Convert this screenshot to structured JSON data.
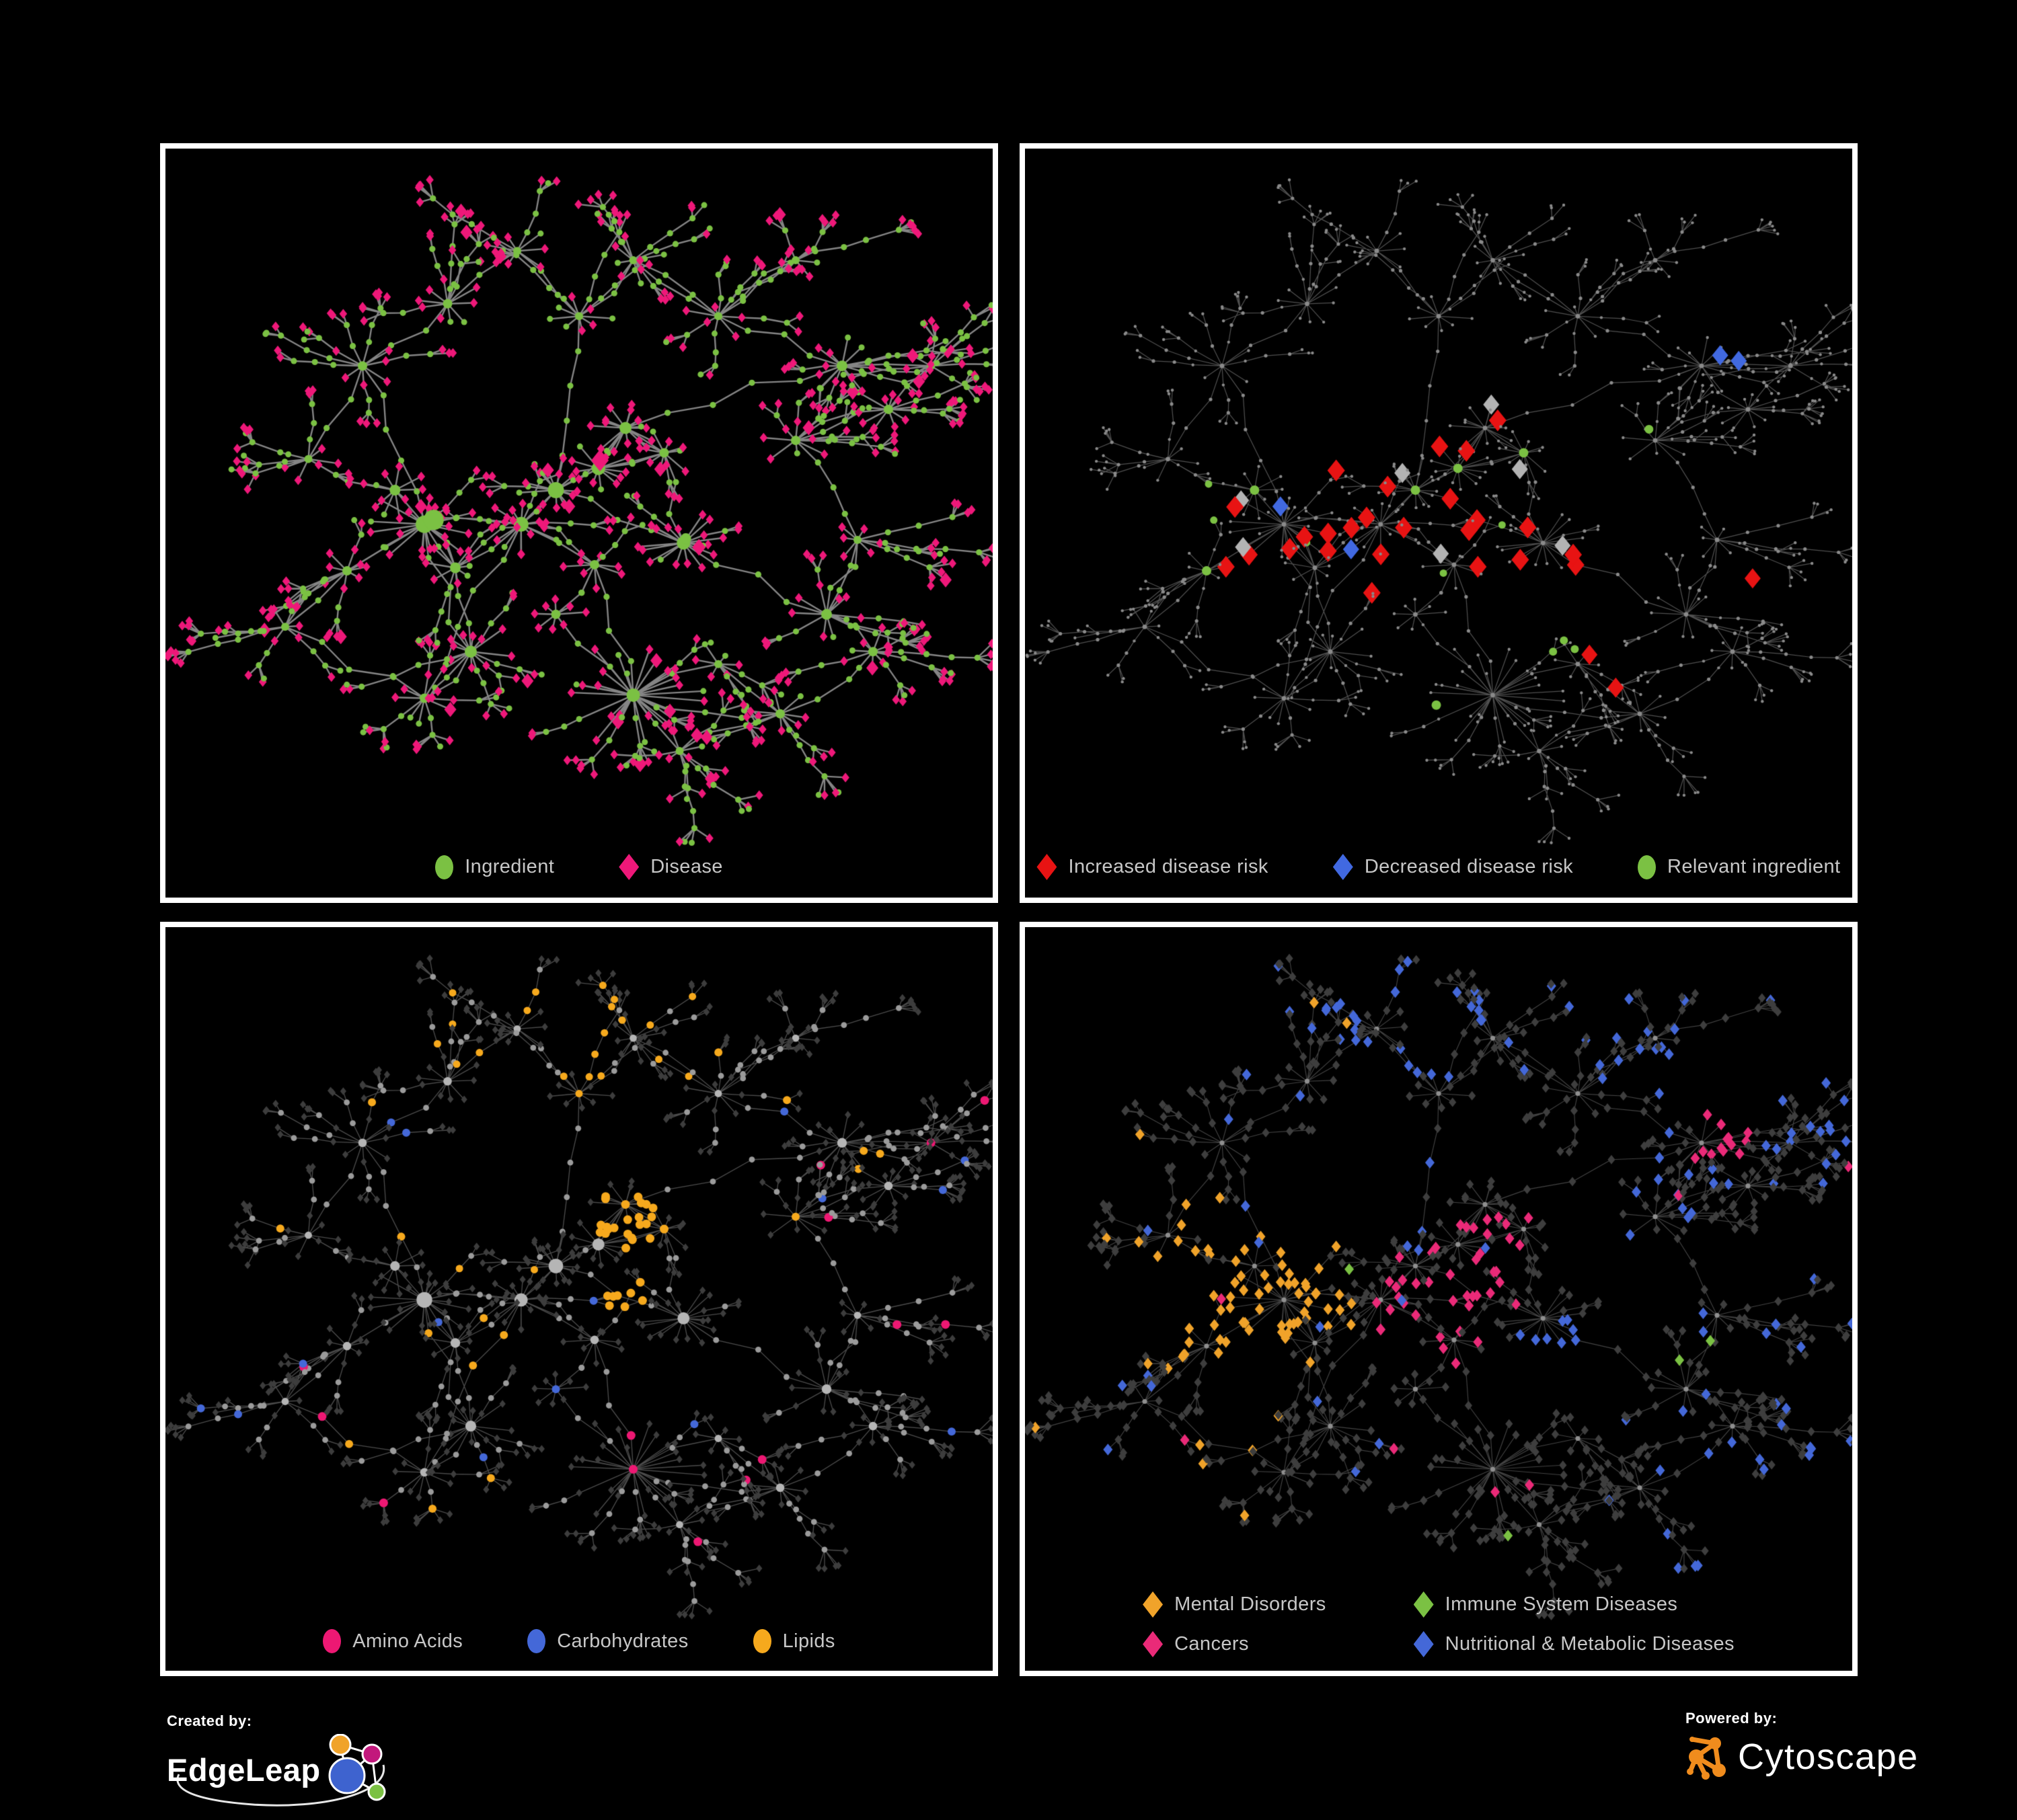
{
  "page": {
    "background": "#000000",
    "panel_border": "#ffffff",
    "legend_text_color": "#c7c7c7"
  },
  "panels": [
    {
      "name": "ingredient-disease-network",
      "position": "top-left",
      "legend": [
        {
          "label": "Ingredient",
          "shape": "circle",
          "color": "#7bc143"
        },
        {
          "label": "Disease",
          "shape": "diamond",
          "color": "#ee1879"
        }
      ],
      "edge_color": "#8f8f8f"
    },
    {
      "name": "disease-risk-network",
      "position": "top-right",
      "legend": [
        {
          "label": "Increased disease risk",
          "shape": "diamond",
          "color": "#e81313"
        },
        {
          "label": "Decreased disease risk",
          "shape": "diamond",
          "color": "#4169e1"
        },
        {
          "label": "Relevant ingredient",
          "shape": "circle",
          "color": "#7bc143"
        }
      ],
      "edge_color": "#7a7a7a",
      "unlabeled_highlight_color": "#b3b3b3"
    },
    {
      "name": "nutrient-class-network",
      "position": "bottom-left",
      "legend": [
        {
          "label": "Amino Acids",
          "shape": "circle",
          "color": "#ed1873"
        },
        {
          "label": "Carbohydrates",
          "shape": "circle",
          "color": "#4468d8"
        },
        {
          "label": "Lipids",
          "shape": "circle",
          "color": "#f6a91d"
        }
      ],
      "edge_color": "#969696"
    },
    {
      "name": "disease-class-network",
      "position": "bottom-right",
      "legend_columns": 2,
      "legend": [
        {
          "label": "Mental Disorders",
          "shape": "diamond",
          "color": "#f0a32a"
        },
        {
          "label": "Immune System Diseases",
          "shape": "diamond",
          "color": "#7bc143"
        },
        {
          "label": "Cancers",
          "shape": "diamond",
          "color": "#ea2a78"
        },
        {
          "label": "Nutritional & Metabolic Diseases",
          "shape": "diamond",
          "color": "#4468d8"
        }
      ],
      "edge_color": "#808080"
    }
  ],
  "footer": {
    "created_by_label": "Created by:",
    "created_by_name": "EdgeLeap",
    "powered_by_label": "Powered by:",
    "powered_by_name": "Cytoscape",
    "cytoscape_icon_color": "#f08c1d",
    "edgeleap_logo_colors": [
      "#f0a32a",
      "#c2187c",
      "#3e63cf",
      "#7bc143"
    ]
  },
  "chart_data": {
    "type": "network",
    "panel_count": 4,
    "shared_layout": true,
    "background": "#000000",
    "panels": [
      {
        "position": "top-left",
        "legend": [
          "Ingredient",
          "Disease"
        ],
        "node_encoding": "green circles = ingredients (hubs), pink diamonds = diseases (leaves)",
        "approx_nodes": 650
      },
      {
        "position": "top-right",
        "legend": [
          "Increased disease risk",
          "Decreased disease risk",
          "Relevant ingredient"
        ],
        "node_encoding": "tiny gray dots = background network; red diamonds = increased risk, blue diamonds = decreased risk, gray diamonds = unlabeled, green circles = relevant ingredients, concentrated in the central-left region",
        "approx_highlighted": {
          "red": 28,
          "blue": 9,
          "gray": 8,
          "green": 30
        }
      },
      {
        "position": "bottom-left",
        "legend": [
          "Amino Acids",
          "Carbohydrates",
          "Lipids"
        ],
        "node_encoding": "light gray circles = ingredients, dark gray diamonds = diseases; pink circles = amino acids (scattered periphery), blue circles = carbohydrates (sparse), orange circles = lipids (dense upper-center clump)",
        "approx_highlighted": {
          "amino_acids": 20,
          "carbohydrates": 12,
          "lipids": 55
        }
      },
      {
        "position": "bottom-right",
        "legend": [
          "Mental Disorders",
          "Immune System Diseases",
          "Cancers",
          "Nutritional & Metabolic Diseases"
        ],
        "node_encoding": "all diseases drawn as diamonds colored by class: orange cluster left-center (mental), pink cluster center (cancers), blue scattered top/right (nutritional & metabolic), green sparse (immune)",
        "approx_highlighted": {
          "mental_disorders": 90,
          "immune_system": 10,
          "cancers": 55,
          "nutritional_metabolic": 85
        }
      }
    ]
  }
}
